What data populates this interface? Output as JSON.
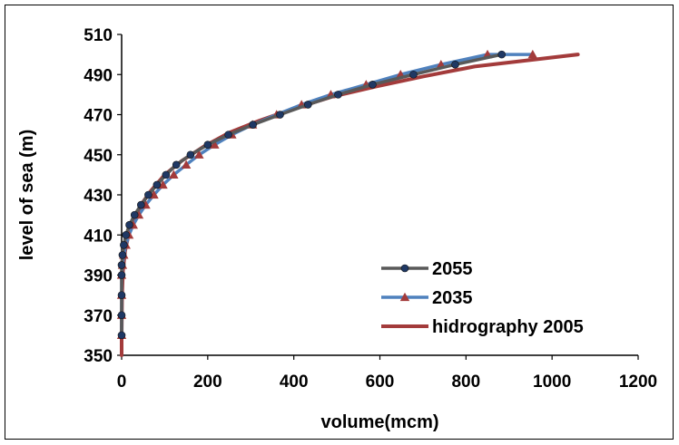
{
  "chart_data": {
    "type": "line",
    "title": "",
    "xlabel": "volume(mcm)",
    "ylabel": "level of sea (m)",
    "xlim": [
      0,
      1200
    ],
    "ylim": [
      350,
      510
    ],
    "xticks": [
      "0",
      "200",
      "400",
      "600",
      "800",
      "1000",
      "1200"
    ],
    "yticks": [
      "350",
      "370",
      "390",
      "410",
      "430",
      "450",
      "470",
      "490",
      "510"
    ],
    "grid": false,
    "legend_position": "bottom-right",
    "series": [
      {
        "name": "2055",
        "color": "#595959",
        "marker": "circle",
        "marker_color": "#1f3864",
        "x": [
          0,
          0,
          0,
          0,
          0,
          2,
          5,
          10,
          18,
          30,
          45,
          62,
          82,
          103,
          127,
          160,
          200,
          248,
          305,
          368,
          433,
          503,
          583,
          678,
          775,
          883
        ],
        "y": [
          360,
          370,
          380,
          390,
          395,
          400,
          405,
          410,
          415,
          420,
          425,
          430,
          435,
          440,
          445,
          450,
          455,
          460,
          465,
          470,
          475,
          480,
          485,
          490,
          495,
          500
        ]
      },
      {
        "name": "2035",
        "color": "#4f81bd",
        "marker": "triangle",
        "marker_color": "#a33b3b",
        "x": [
          0,
          0,
          0,
          0,
          2,
          5,
          10,
          17,
          27,
          40,
          56,
          75,
          96,
          121,
          150,
          180,
          216,
          256,
          304,
          360,
          418,
          486,
          568,
          648,
          742,
          850,
          955
        ],
        "y": [
          360,
          370,
          380,
          390,
          395,
          400,
          405,
          410,
          415,
          420,
          425,
          430,
          435,
          440,
          445,
          450,
          455,
          460,
          465,
          470,
          475,
          480,
          485,
          490,
          495,
          500,
          500
        ]
      },
      {
        "name": "hidrography 2005",
        "color": "#a33b3b",
        "marker": "none",
        "x": [
          0,
          0,
          1,
          3,
          8,
          16,
          28,
          45,
          68,
          100,
          140,
          190,
          250,
          320,
          400,
          490,
          590,
          700,
          820,
          940,
          1060
        ],
        "y": [
          350,
          360,
          380,
          392,
          402,
          410,
          417,
          425,
          432,
          440,
          447,
          454,
          461,
          467,
          473,
          479,
          484,
          489,
          494,
          497,
          500
        ]
      }
    ]
  }
}
